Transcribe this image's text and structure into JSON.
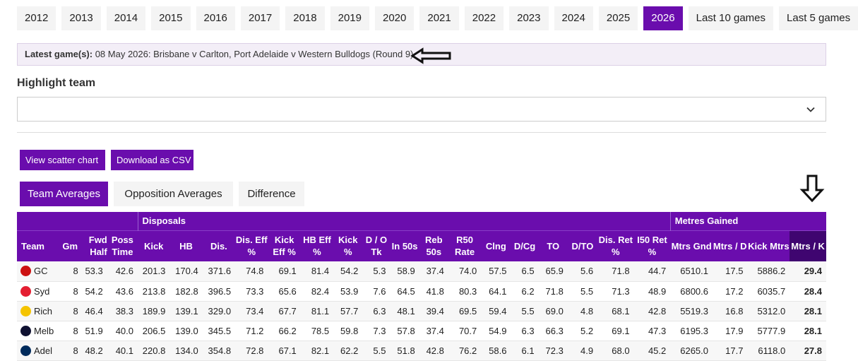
{
  "year_tabs": [
    "2012",
    "2013",
    "2014",
    "2015",
    "2016",
    "2017",
    "2018",
    "2019",
    "2020",
    "2021",
    "2022",
    "2023",
    "2024",
    "2025",
    "2026",
    "Last 10 games",
    "Last 5 games"
  ],
  "active_year": "2026",
  "latest": {
    "label": "Latest game(s):",
    "text": "08 May 2026: Brisbane v Carlton, Port Adelaide v Western Bulldogs (Round 9)"
  },
  "highlight": {
    "label": "Highlight team",
    "value": ""
  },
  "buttons": {
    "scatter": "View scatter chart",
    "csv": "Download as CSV"
  },
  "view_tabs": [
    "Team Averages",
    "Opposition Averages",
    "Difference"
  ],
  "table": {
    "groups": {
      "disposals": "Disposals",
      "metres": "Metres Gained"
    },
    "headers": [
      "Team",
      "Gm",
      "Fwd Half",
      "Poss Time",
      "Kick",
      "HB",
      "Dis.",
      "Dis. Eff %",
      "Kick Eff %",
      "HB Eff %",
      "Kick %",
      "D / O Tk",
      "In 50s",
      "Reb 50s",
      "R50 Rate",
      "Clng",
      "D/Cg",
      "TO",
      "D/TO",
      "Dis. Ret %",
      "I50 Ret %",
      "Mtrs Gnd",
      "Mtrs / D",
      "Kick Mtrs",
      "Mtrs / K"
    ],
    "rows": [
      {
        "team": "GC",
        "logo": "gc-logo-icon",
        "color": "#cc1111",
        "vals": [
          "8",
          "53.3",
          "42.6",
          "201.3",
          "170.4",
          "371.6",
          "74.8",
          "69.1",
          "81.4",
          "54.2",
          "5.3",
          "58.9",
          "37.4",
          "74.0",
          "57.5",
          "6.5",
          "65.9",
          "5.6",
          "71.8",
          "44.7",
          "6510.1",
          "17.5",
          "5886.2",
          "29.4"
        ]
      },
      {
        "team": "Syd",
        "logo": "syd-logo-icon",
        "color": "#e41e31",
        "vals": [
          "8",
          "54.2",
          "43.6",
          "213.8",
          "182.8",
          "396.5",
          "73.3",
          "65.6",
          "82.4",
          "53.9",
          "7.6",
          "64.5",
          "41.8",
          "80.3",
          "64.1",
          "6.2",
          "71.8",
          "5.5",
          "71.3",
          "48.9",
          "6800.6",
          "17.2",
          "6035.7",
          "28.4"
        ]
      },
      {
        "team": "Rich",
        "logo": "rich-logo-icon",
        "color": "#f5c400",
        "vals": [
          "8",
          "46.4",
          "38.3",
          "189.9",
          "139.1",
          "329.0",
          "73.4",
          "67.7",
          "81.1",
          "57.7",
          "6.3",
          "48.1",
          "39.4",
          "69.5",
          "59.4",
          "5.5",
          "69.0",
          "4.8",
          "68.1",
          "42.8",
          "5519.3",
          "16.8",
          "5312.0",
          "28.1"
        ]
      },
      {
        "team": "Melb",
        "logo": "melb-logo-icon",
        "color": "#0f1131",
        "vals": [
          "8",
          "51.9",
          "40.0",
          "206.5",
          "139.0",
          "345.5",
          "71.2",
          "66.2",
          "78.5",
          "59.8",
          "7.3",
          "57.8",
          "37.4",
          "70.7",
          "54.9",
          "6.3",
          "66.3",
          "5.2",
          "69.1",
          "47.3",
          "6195.3",
          "17.9",
          "5777.9",
          "28.1"
        ]
      },
      {
        "team": "Adel",
        "logo": "adel-logo-icon",
        "color": "#002b5c",
        "vals": [
          "8",
          "48.2",
          "40.1",
          "220.8",
          "134.0",
          "354.8",
          "72.8",
          "67.1",
          "82.1",
          "62.2",
          "5.5",
          "51.8",
          "42.8",
          "76.2",
          "58.6",
          "6.1",
          "72.3",
          "4.9",
          "68.0",
          "45.2",
          "6265.0",
          "17.7",
          "6118.0",
          "27.8"
        ]
      }
    ]
  },
  "icons": {
    "chevron": "chevron-down-icon",
    "left_arrow": "arrow-left-icon",
    "down_arrow": "arrow-down-icon"
  },
  "colors": {
    "accent": "#6a0dad",
    "sorted_header": "#3f0570"
  }
}
